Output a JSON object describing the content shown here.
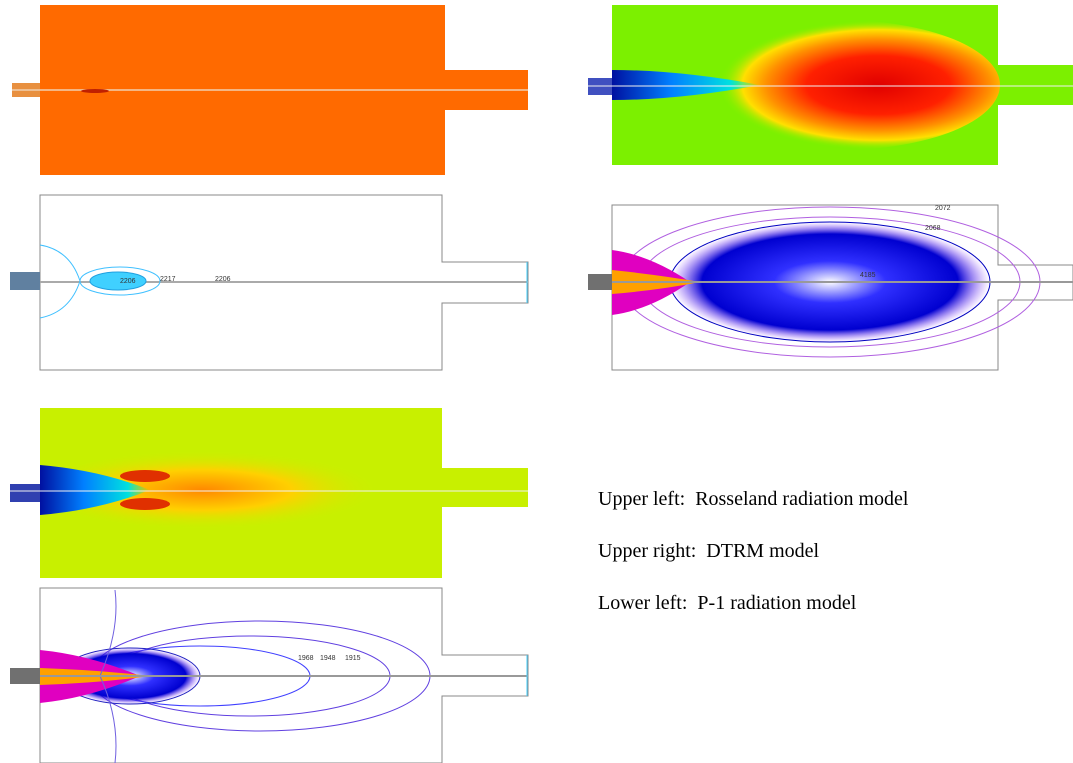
{
  "captions": [
    "Upper left:  Rosseland radiation model",
    "Upper right:  DTRM model",
    "Lower left:  P-1 radiation model"
  ],
  "contour_labels": {
    "upper_left": [
      "2206",
      "2217",
      "2206"
    ],
    "upper_right": [
      "2072",
      "2068",
      "4185"
    ],
    "lower_left": [
      "1968",
      "1948",
      "1915"
    ]
  }
}
